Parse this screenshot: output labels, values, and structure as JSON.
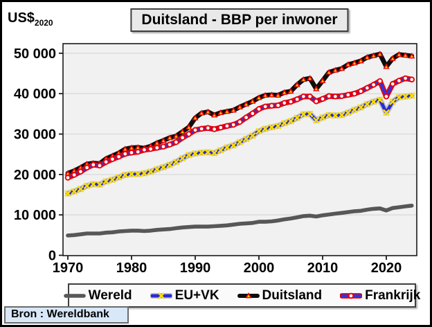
{
  "chart_data": {
    "type": "line",
    "title": "Duitsland - BBP per inwoner",
    "y_axis_label": "US$",
    "y_axis_label_sub": "2020",
    "x_label": "",
    "source": "Bron : Wereldbank",
    "grid": true,
    "legend_position": "bottom",
    "ylim": [
      0,
      52000
    ],
    "yticks": [
      0,
      10000,
      20000,
      30000,
      40000,
      50000
    ],
    "ytick_labels": [
      "0",
      "10 000",
      "20 000",
      "30 000",
      "40 000",
      "50 000"
    ],
    "xticks": [
      1970,
      1980,
      1990,
      2000,
      2010,
      2020
    ],
    "years": [
      1970,
      1971,
      1972,
      1973,
      1974,
      1975,
      1976,
      1977,
      1978,
      1979,
      1980,
      1981,
      1982,
      1983,
      1984,
      1985,
      1986,
      1987,
      1988,
      1989,
      1990,
      1991,
      1992,
      1993,
      1994,
      1995,
      1996,
      1997,
      1998,
      1999,
      2000,
      2001,
      2002,
      2003,
      2004,
      2005,
      2006,
      2007,
      2008,
      2009,
      2010,
      2011,
      2012,
      2013,
      2014,
      2015,
      2016,
      2017,
      2018,
      2019,
      2020,
      2021,
      2022,
      2023,
      2024
    ],
    "series": [
      {
        "name": "Wereld",
        "color": "#575757",
        "width": 5.6,
        "marker": "none",
        "values": [
          4900,
          5000,
          5200,
          5400,
          5400,
          5400,
          5600,
          5700,
          5900,
          6000,
          6100,
          6100,
          6000,
          6100,
          6300,
          6400,
          6500,
          6700,
          6900,
          7000,
          7100,
          7100,
          7100,
          7200,
          7300,
          7400,
          7600,
          7800,
          7900,
          8000,
          8300,
          8300,
          8400,
          8600,
          8900,
          9100,
          9400,
          9700,
          9800,
          9600,
          9900,
          10100,
          10300,
          10500,
          10700,
          10900,
          11000,
          11300,
          11500,
          11600,
          11100,
          11700,
          11900,
          12100,
          12300
        ]
      },
      {
        "name": "EU+VK",
        "color": "#2b2bd5",
        "width": 4.8,
        "casing": "#c0c0c0",
        "casing_width": 8.4,
        "marker": "x",
        "marker_color": "#ffe000",
        "values": [
          15300,
          15800,
          16400,
          17200,
          17600,
          17500,
          18300,
          18700,
          19300,
          19900,
          20100,
          20100,
          20300,
          20700,
          21300,
          21800,
          22400,
          23100,
          24000,
          24800,
          25200,
          25400,
          25500,
          25300,
          26000,
          26700,
          27200,
          28000,
          28800,
          29600,
          30700,
          31300,
          31700,
          32000,
          32700,
          33200,
          34000,
          34900,
          35000,
          33400,
          34100,
          34700,
          34600,
          34700,
          35300,
          36000,
          36600,
          37400,
          38000,
          38500,
          35300,
          38000,
          39100,
          39300,
          39500
        ]
      },
      {
        "name": "Duitsland",
        "color": "#0d0d0d",
        "width": 6.8,
        "marker": "triangle",
        "marker_color": "#e8000d",
        "marker_inner": "#ffd400",
        "values": [
          20300,
          20900,
          21700,
          22600,
          22800,
          22700,
          23900,
          24600,
          25300,
          26300,
          26600,
          26700,
          26500,
          27000,
          27800,
          28400,
          29100,
          29500,
          30600,
          31700,
          34000,
          35200,
          35500,
          34700,
          35300,
          35600,
          35900,
          36700,
          37400,
          38100,
          39000,
          39600,
          39700,
          39600,
          40300,
          40600,
          42200,
          43500,
          43800,
          41200,
          43200,
          45300,
          45800,
          46200,
          47200,
          47600,
          48100,
          49000,
          49400,
          49800,
          46700,
          48700,
          49700,
          49500,
          49300
        ]
      },
      {
        "name": "Frankrijk",
        "color": "#3434d6",
        "width": 4.2,
        "casing": "#e8000d",
        "casing_width": 7.8,
        "marker": "circle",
        "marker_color": "#e8000d",
        "marker_fill": "#ffffff",
        "values": [
          19200,
          19900,
          20700,
          21700,
          22400,
          22200,
          23100,
          23800,
          24400,
          25100,
          25400,
          25600,
          26100,
          26300,
          26600,
          26900,
          27400,
          28000,
          29100,
          30000,
          31000,
          31300,
          31500,
          31200,
          31600,
          32000,
          32300,
          33000,
          34100,
          35100,
          36200,
          36800,
          37000,
          37100,
          37700,
          38000,
          38600,
          39300,
          39300,
          38100,
          38700,
          39400,
          39300,
          39400,
          39700,
          40000,
          40600,
          41400,
          42200,
          43100,
          39300,
          42400,
          43200,
          43800,
          43500
        ]
      }
    ],
    "theme": {
      "plot_bg": "#f1f1f1",
      "grid_color": "#d9d9d9",
      "axis_color": "#1a1a1a",
      "text_color": "#000000",
      "title_bg": "#e9e9e9",
      "legend_bg": "#fafafa",
      "source_bg": "#d9e8f8"
    }
  }
}
